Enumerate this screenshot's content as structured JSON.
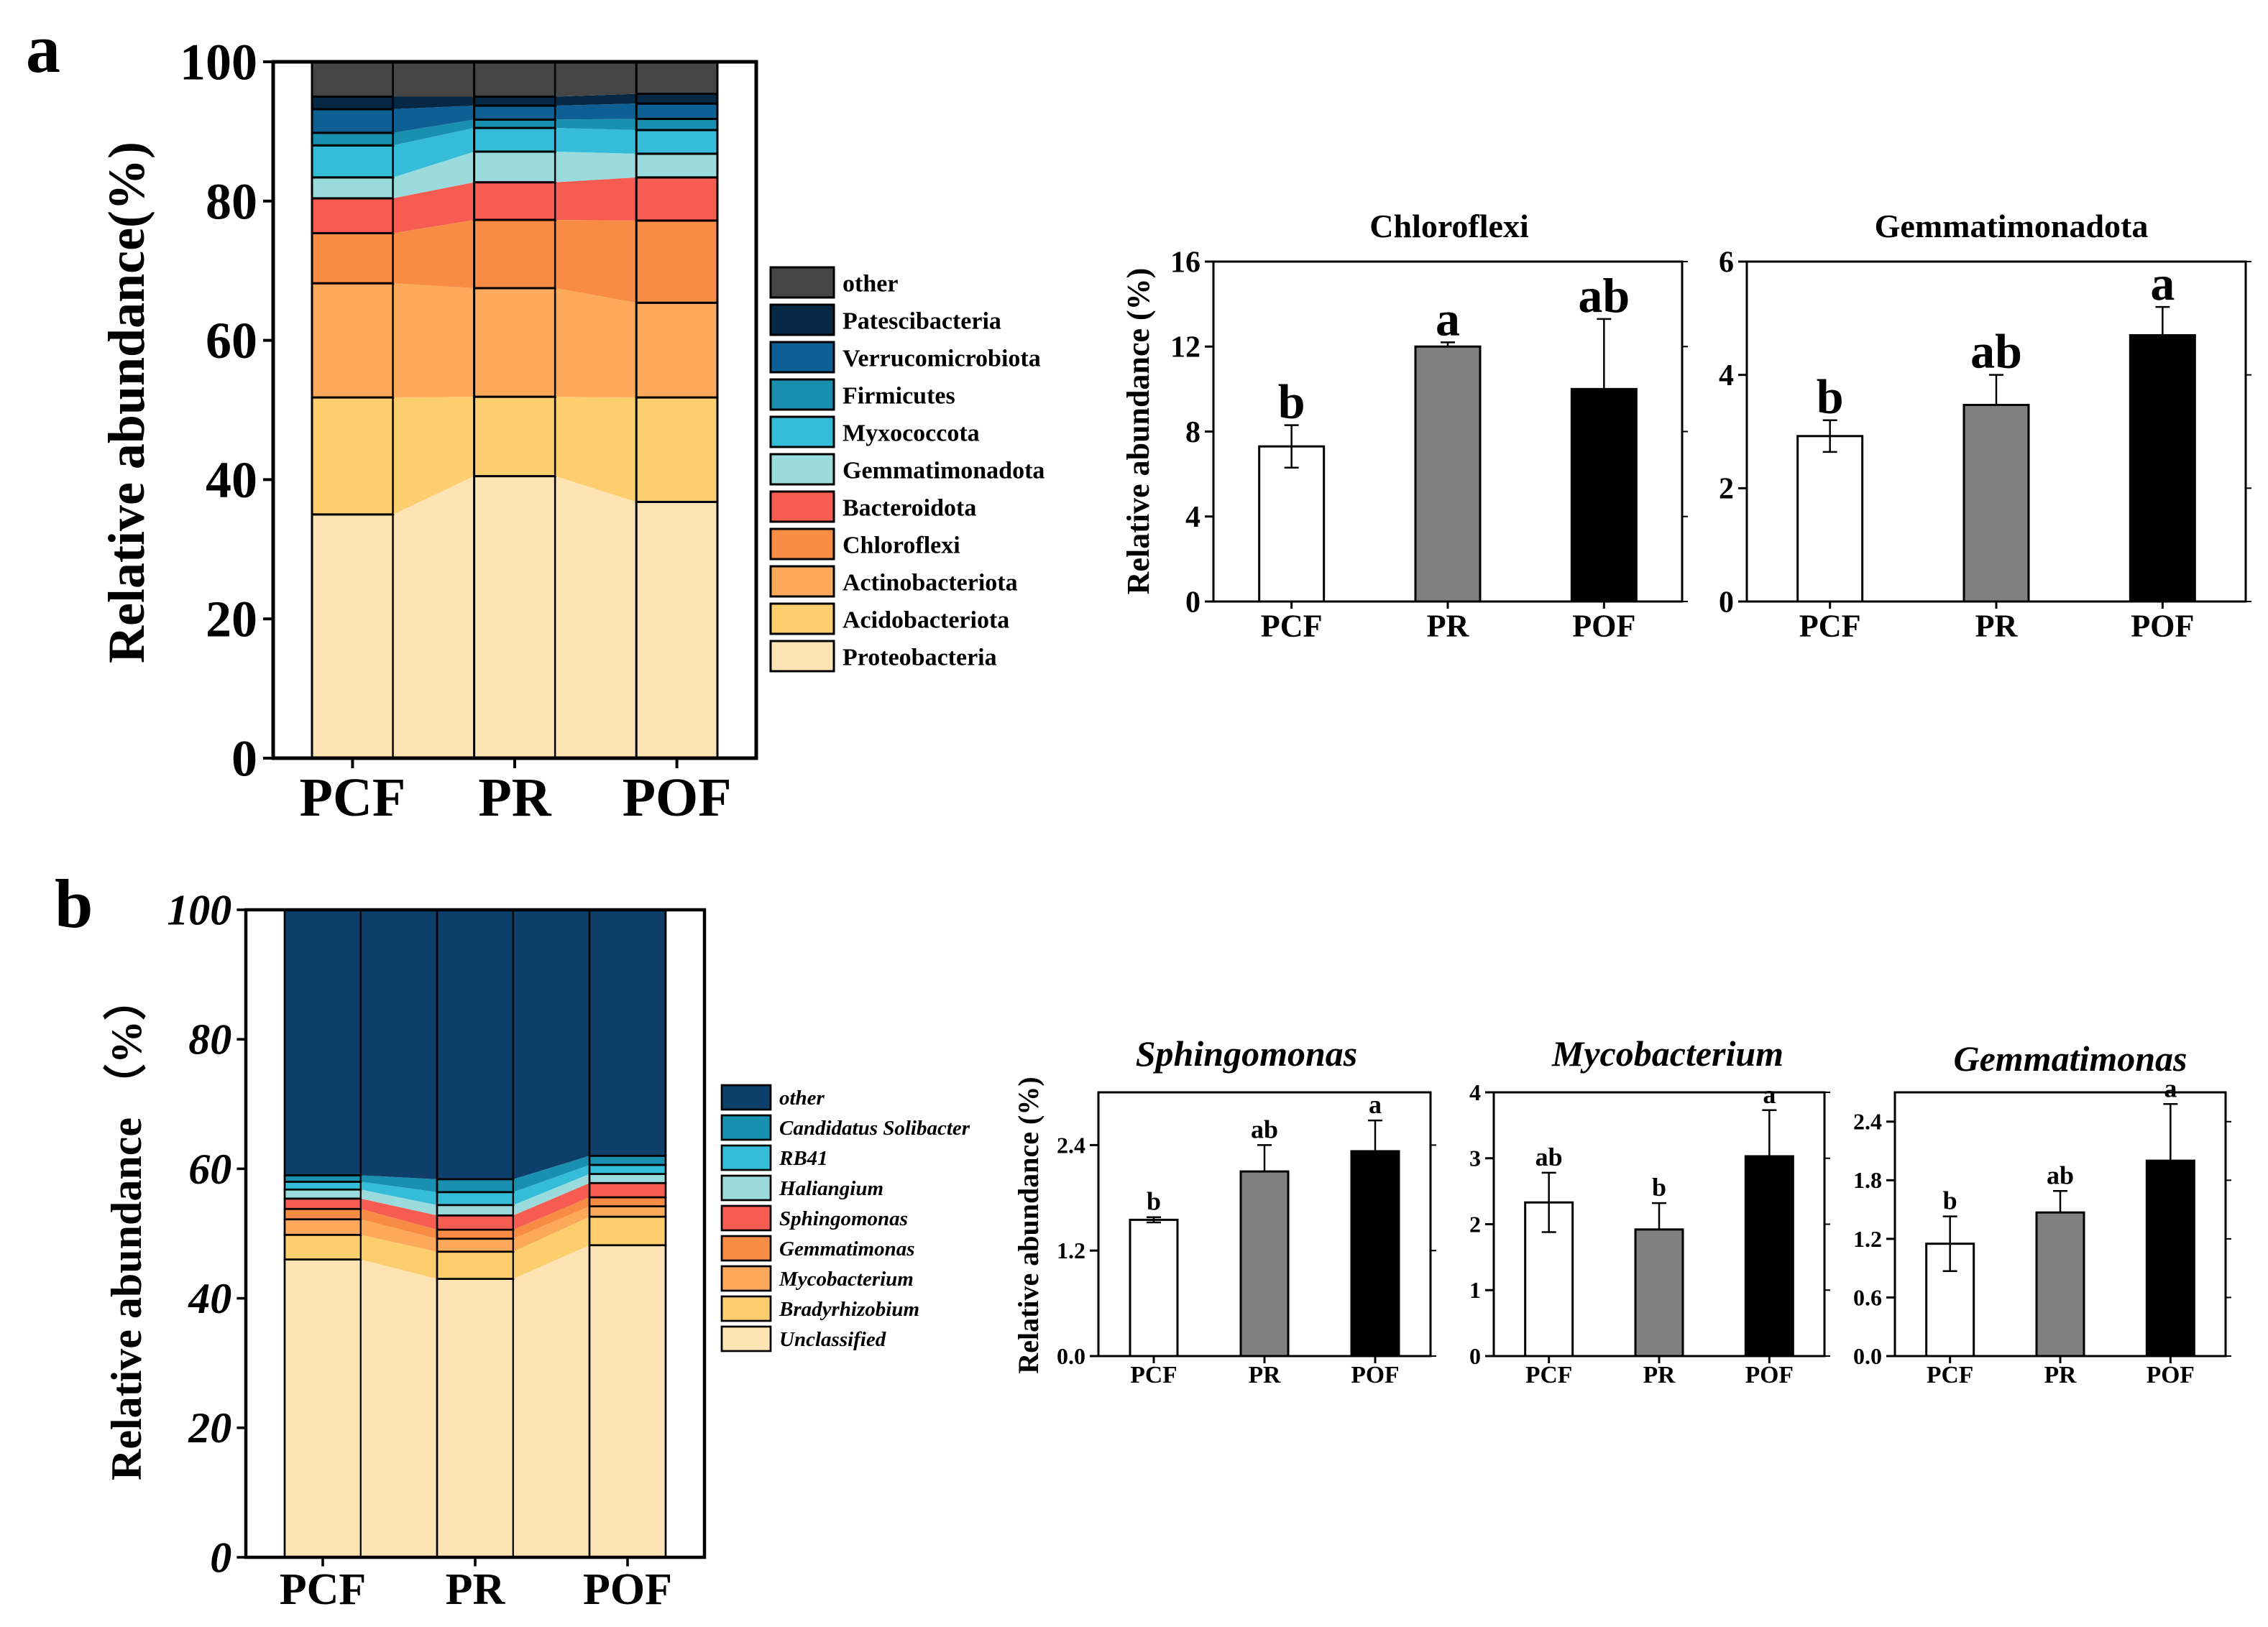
{
  "panel_a": {
    "label": "a",
    "stacked": {
      "ylabel": "Relative abundance(%)",
      "yticks": [
        "0",
        "20",
        "40",
        "60",
        "80",
        "100"
      ],
      "xticks": [
        "PCF",
        "PR",
        "POF"
      ],
      "legend": [
        "other",
        "Patescibacteria",
        "Verrucomicrobiota",
        "Firmicutes",
        "Myxococcota",
        "Gemmatimonadota",
        "Bacteroidota",
        "Chloroflexi",
        "Actinobacteriota",
        "Acidobacteriota",
        "Proteobacteria"
      ]
    },
    "bars": [
      {
        "title": "Chloroflexi",
        "ylabel": "Relative abundance (%)",
        "yticks": [
          "0",
          "4",
          "8",
          "12",
          "16"
        ],
        "xticks": [
          "PCF",
          "PR",
          "POF"
        ],
        "letters": [
          "b",
          "a",
          "ab"
        ]
      },
      {
        "title": "Gemmatimonadota",
        "ylabel": "",
        "yticks": [
          "0",
          "2",
          "4",
          "6"
        ],
        "xticks": [
          "PCF",
          "PR",
          "POF"
        ],
        "letters": [
          "b",
          "ab",
          "a"
        ]
      }
    ]
  },
  "panel_b": {
    "label": "b",
    "stacked": {
      "ylabel": "Relative abundance （%）",
      "yticks": [
        "0",
        "20",
        "40",
        "60",
        "80",
        "100"
      ],
      "xticks": [
        "PCF",
        "PR",
        "POF"
      ],
      "legend": [
        "other",
        "Candidatus Solibacter",
        "RB41",
        "Haliangium",
        "Sphingomonas",
        "Gemmatimonas",
        "Mycobacterium",
        "Bradyrhizobium",
        "Unclassified"
      ]
    },
    "bars": [
      {
        "title": "Sphingomonas",
        "ylabel": "Relative abundance (%)",
        "yticks": [
          "0.0",
          "1.2",
          "2.4"
        ],
        "xticks": [
          "PCF",
          "PR",
          "POF"
        ],
        "letters": [
          "b",
          "ab",
          "a"
        ]
      },
      {
        "title": "Mycobacterium",
        "ylabel": "",
        "yticks": [
          "0",
          "1",
          "2",
          "3",
          "4"
        ],
        "xticks": [
          "PCF",
          "PR",
          "POF"
        ],
        "letters": [
          "ab",
          "b",
          "a"
        ]
      },
      {
        "title": "Gemmatimonas",
        "ylabel": "",
        "yticks": [
          "0.0",
          "0.6",
          "1.2",
          "1.8",
          "2.4"
        ],
        "xticks": [
          "PCF",
          "PR",
          "POF"
        ],
        "letters": [
          "b",
          "ab",
          "a"
        ]
      }
    ]
  },
  "chart_data": [
    {
      "type": "bar",
      "stacked": true,
      "panel": "a",
      "categories": [
        "PCF",
        "PR",
        "POF"
      ],
      "ylim": [
        0,
        100
      ],
      "ylabel": "Relative abundance(%)",
      "colors": [
        "#FEE4B4",
        "#FDCE6D",
        "#FCA95C",
        "#F98C44",
        "#F65C52",
        "#9ADCDE",
        "#34BCD8",
        "#1A90B0",
        "#0E6094",
        "#052845",
        "#454545"
      ],
      "series": [
        {
          "name": "Proteobacteria",
          "values": [
            35.0,
            40.5,
            36.8
          ]
        },
        {
          "name": "Acidobacteriota",
          "values": [
            16.8,
            11.4,
            15.0
          ]
        },
        {
          "name": "Actinobacteriota",
          "values": [
            16.4,
            15.6,
            13.6
          ]
        },
        {
          "name": "Chloroflexi",
          "values": [
            7.2,
            9.8,
            11.8
          ]
        },
        {
          "name": "Bacteroidota",
          "values": [
            5.0,
            5.4,
            6.2
          ]
        },
        {
          "name": "Gemmatimonadota",
          "values": [
            3.0,
            4.4,
            3.4
          ]
        },
        {
          "name": "Myxococcota",
          "values": [
            4.6,
            3.4,
            3.4
          ]
        },
        {
          "name": "Firmicutes",
          "values": [
            1.8,
            1.2,
            1.6
          ]
        },
        {
          "name": "Verrucomicrobiota",
          "values": [
            3.4,
            2.0,
            2.2
          ]
        },
        {
          "name": "Patescibacteria",
          "values": [
            1.8,
            1.3,
            1.4
          ]
        },
        {
          "name": "other",
          "values": [
            5.0,
            5.0,
            4.6
          ]
        }
      ]
    },
    {
      "type": "bar",
      "panel": "a",
      "title": "Chloroflexi",
      "categories": [
        "PCF",
        "PR",
        "POF"
      ],
      "values": [
        7.3,
        12.0,
        10.0
      ],
      "errors": [
        1.0,
        0.2,
        3.3
      ],
      "ylim": [
        0,
        16
      ],
      "ylabel": "Relative abundance (%)",
      "letters": [
        "b",
        "a",
        "ab"
      ],
      "colors": [
        "#FFFFFF",
        "#808080",
        "#000000"
      ]
    },
    {
      "type": "bar",
      "panel": "a",
      "title": "Gemmatimonadota",
      "categories": [
        "PCF",
        "PR",
        "POF"
      ],
      "values": [
        2.92,
        3.47,
        4.7
      ],
      "errors": [
        0.28,
        0.53,
        0.5
      ],
      "ylim": [
        0,
        6
      ],
      "letters": [
        "b",
        "ab",
        "a"
      ],
      "colors": [
        "#FFFFFF",
        "#808080",
        "#000000"
      ]
    },
    {
      "type": "bar",
      "stacked": true,
      "panel": "b",
      "categories": [
        "PCF",
        "PR",
        "POF"
      ],
      "ylim": [
        0,
        100
      ],
      "ylabel": "Relative abundance （%）",
      "colors": [
        "#FEE4B4",
        "#FDCE6D",
        "#FCA95C",
        "#F98C44",
        "#F65C52",
        "#9ADCDE",
        "#34BCD8",
        "#1A90B0",
        "#0E3F6A"
      ],
      "series": [
        {
          "name": "Unclassified",
          "values": [
            46.0,
            43.0,
            48.2
          ]
        },
        {
          "name": "Bradyrhizobium",
          "values": [
            3.8,
            4.2,
            4.4
          ]
        },
        {
          "name": "Mycobacterium",
          "values": [
            2.4,
            2.0,
            1.6
          ]
        },
        {
          "name": "Gemmatimonas",
          "values": [
            1.6,
            1.4,
            1.4
          ]
        },
        {
          "name": "Sphingomonas",
          "values": [
            1.6,
            2.2,
            2.2
          ]
        },
        {
          "name": "Haliangium",
          "values": [
            1.4,
            1.6,
            1.4
          ]
        },
        {
          "name": "RB41",
          "values": [
            1.2,
            2.0,
            1.4
          ]
        },
        {
          "name": "Candidatus Solibacter",
          "values": [
            1.0,
            2.0,
            1.4
          ]
        },
        {
          "name": "other",
          "values": [
            41.0,
            41.6,
            38.0
          ]
        }
      ]
    },
    {
      "type": "bar",
      "panel": "b",
      "title": "Sphingomonas",
      "categories": [
        "PCF",
        "PR",
        "POF"
      ],
      "values": [
        1.55,
        2.1,
        2.33
      ],
      "errors": [
        0.03,
        0.3,
        0.35
      ],
      "ylim": [
        0,
        3.0
      ],
      "ylabel": "Relative abundance (%)",
      "letters": [
        "b",
        "ab",
        "a"
      ],
      "colors": [
        "#FFFFFF",
        "#808080",
        "#000000"
      ]
    },
    {
      "type": "bar",
      "panel": "b",
      "title": "Mycobacterium",
      "categories": [
        "PCF",
        "PR",
        "POF"
      ],
      "values": [
        2.33,
        1.92,
        3.03
      ],
      "errors": [
        0.45,
        0.4,
        0.7
      ],
      "ylim": [
        0,
        4.0
      ],
      "letters": [
        "ab",
        "b",
        "a"
      ],
      "colors": [
        "#FFFFFF",
        "#808080",
        "#000000"
      ]
    },
    {
      "type": "bar",
      "panel": "b",
      "title": "Gemmatimonas",
      "categories": [
        "PCF",
        "PR",
        "POF"
      ],
      "values": [
        1.15,
        1.47,
        2.0
      ],
      "errors": [
        0.28,
        0.22,
        0.58
      ],
      "ylim": [
        0,
        2.7
      ],
      "letters": [
        "b",
        "ab",
        "a"
      ],
      "colors": [
        "#FFFFFF",
        "#808080",
        "#000000"
      ]
    }
  ]
}
